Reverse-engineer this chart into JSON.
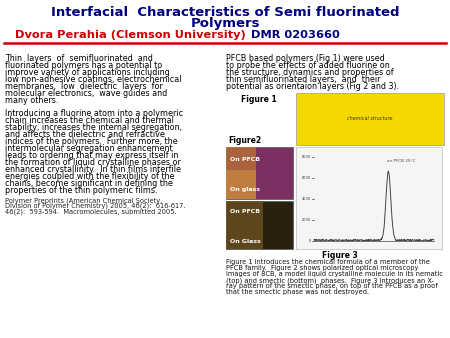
{
  "title_line1": "Interfacial  Characteristics of Semi fluorinated",
  "title_line2": "Polymers",
  "subtitle_red": "Dvora Perahia (Clemson University)",
  "subtitle_blue": "  DMR 0203660",
  "title_color": "#000080",
  "subtitle_name_color": "#cc0000",
  "subtitle_dmr_color": "#000080",
  "bg_color": "#ffffff",
  "divider_color": "#cc0000",
  "left_text1_lines": [
    "Thin  layers  of  semifluorinated  and",
    "fluorinated polymers has a potential to",
    "improve variety of applications including",
    "low non-adhesive coatings, electrochemical",
    "membranes,  low  dielectric  layers  for",
    "molecular electronics,  wave guides and",
    "many others."
  ],
  "left_text2_lines": [
    "Introducing a fluorine atom into a polymeric",
    "chain increases the chemical and thermal",
    "stability, increases the internal segregation,",
    "and affects the dielectric and refractive",
    "indices of the polymers.  Further more, the",
    "intermolecular segregation enhancement",
    "leads to ordering that may express itself in",
    "the formation of liquid crystalline phases or",
    "enhanced crystallinity.  In thin films interfile",
    "energies coupled with the flexibility of the",
    "chains, become significant in defining the",
    "properties of the thin polymeric films."
  ],
  "footer_lines": [
    "Polymer Preprints (American Chemical Society,",
    "Division of Polymer Chemistry) 2005, 46(2):  616-617.",
    "46(2):  593-594.  Macromolecules, submitted 2005."
  ],
  "footer_bold_word": "2005",
  "right_text1_lines": [
    "PFCB based polymers (Fig 1) were used",
    "to probe the effects of added fluorine on",
    "the structure, dynamics and properties of",
    "thin semifluorinated layers,  and  their",
    "potential as orientaion layers (Fig 2 and 3)."
  ],
  "caption_lines": [
    "Figure 1 introduces the chemical formula of a member of the",
    "PFCB family.  Figure 2 shows polarized optical microscopy",
    "images of 8CB, a model liquid crystalline molecule in its nematic",
    "(top) and smectic (bottom)  phases.  Figure 3 introduces an X-",
    "ray pattern of the smectic phase, on top of the PFCB as a proof",
    "that the smectic phase was not destroyed."
  ],
  "fig1_label": "Figure 1",
  "fig2_label": "Figure2",
  "fig3_label": "Figure 3",
  "fig1_bg": "#f5d800",
  "fig2_top_colors": [
    "#c8a050",
    "#8B3050",
    "#9B2080"
  ],
  "fig2_bot_colors": [
    "#3A3010",
    "#6A5020"
  ],
  "fig3_bg": "#f0f0f0",
  "text_fontsize": 5.8,
  "title_fontsize": 9.5,
  "subtitle_fontsize": 8.2,
  "caption_fontsize": 4.8,
  "footer_fontsize": 4.8
}
